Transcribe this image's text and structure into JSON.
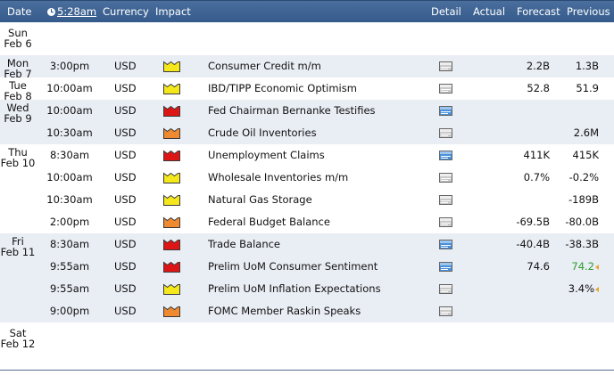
{
  "header": {
    "date": "Date",
    "time": "5:28am",
    "currency": "Currency",
    "impact": "Impact",
    "detail": "Detail",
    "actual": "Actual",
    "forecast": "Forecast",
    "previous": "Previous"
  },
  "impact_colors": {
    "high": "#dd1515",
    "medium": "#f08a30",
    "low": "#f4e81c"
  },
  "days": [
    {
      "day": "Sun",
      "date": "Feb 6",
      "shade": false,
      "events": []
    },
    {
      "day": "Mon",
      "date": "Feb 7",
      "shade": true,
      "events": [
        {
          "time": "3:00pm",
          "currency": "USD",
          "impact": "low",
          "event": "Consumer Credit m/m",
          "detail": "doc-gray-icon",
          "actual": "",
          "forecast": "2.2B",
          "previous": "1.3B"
        }
      ]
    },
    {
      "day": "Tue",
      "date": "Feb 8",
      "shade": false,
      "events": [
        {
          "time": "10:00am",
          "currency": "USD",
          "impact": "low",
          "event": "IBD/TIPP Economic Optimism",
          "detail": "doc-gray-icon",
          "actual": "",
          "forecast": "52.8",
          "previous": "51.9"
        }
      ]
    },
    {
      "day": "Wed",
      "date": "Feb 9",
      "shade": true,
      "events": [
        {
          "time": "10:00am",
          "currency": "USD",
          "impact": "high",
          "event": "Fed Chairman Bernanke Testifies",
          "detail": "doc-blue-icon",
          "actual": "",
          "forecast": "",
          "previous": ""
        },
        {
          "time": "10:30am",
          "currency": "USD",
          "impact": "medium",
          "event": "Crude Oil Inventories",
          "detail": "doc-gray-icon",
          "actual": "",
          "forecast": "",
          "previous": "2.6M"
        }
      ]
    },
    {
      "day": "Thu",
      "date": "Feb 10",
      "shade": false,
      "events": [
        {
          "time": "8:30am",
          "currency": "USD",
          "impact": "high",
          "event": "Unemployment Claims",
          "detail": "doc-blue-icon",
          "actual": "",
          "forecast": "411K",
          "previous": "415K"
        },
        {
          "time": "10:00am",
          "currency": "USD",
          "impact": "low",
          "event": "Wholesale Inventories m/m",
          "detail": "doc-gray-icon",
          "actual": "",
          "forecast": "0.7%",
          "previous": "-0.2%"
        },
        {
          "time": "10:30am",
          "currency": "USD",
          "impact": "low",
          "event": "Natural Gas Storage",
          "detail": "doc-gray-icon",
          "actual": "",
          "forecast": "",
          "previous": "-189B"
        },
        {
          "time": "2:00pm",
          "currency": "USD",
          "impact": "medium",
          "event": "Federal Budget Balance",
          "detail": "doc-gray-icon",
          "actual": "",
          "forecast": "-69.5B",
          "previous": "-80.0B"
        }
      ]
    },
    {
      "day": "Fri",
      "date": "Feb 11",
      "shade": true,
      "events": [
        {
          "time": "8:30am",
          "currency": "USD",
          "impact": "high",
          "event": "Trade Balance",
          "detail": "doc-blue-icon",
          "actual": "",
          "forecast": "-40.4B",
          "previous": "-38.3B"
        },
        {
          "time": "9:55am",
          "currency": "USD",
          "impact": "high",
          "event": "Prelim UoM Consumer Sentiment",
          "detail": "doc-blue-icon",
          "actual": "",
          "forecast": "74.6",
          "previous": "74.2",
          "previous_revised": "up"
        },
        {
          "time": "9:55am",
          "currency": "USD",
          "impact": "low",
          "event": "Prelim UoM Inflation Expectations",
          "detail": "doc-gray-icon",
          "actual": "",
          "forecast": "",
          "previous": "3.4%",
          "previous_revised": "flag"
        },
        {
          "time": "9:00pm",
          "currency": "USD",
          "impact": "medium",
          "event": "FOMC Member Raskin Speaks",
          "detail": "doc-gray-icon",
          "actual": "",
          "forecast": "",
          "previous": ""
        }
      ]
    },
    {
      "day": "Sat",
      "date": "Feb 12",
      "shade": false,
      "events": []
    }
  ]
}
